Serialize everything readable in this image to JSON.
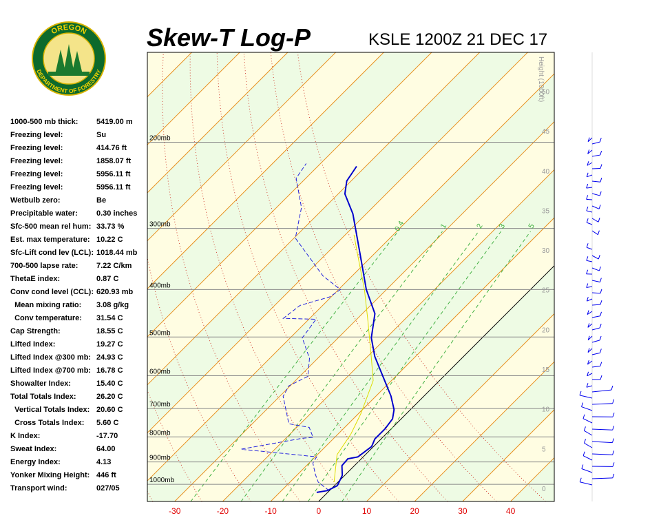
{
  "logo": {
    "top": "OREGON",
    "bottom": "DEPARTMENT OF FORESTRY"
  },
  "stats": [
    [
      "1000-500 mb thick:",
      "5419.00 m"
    ],
    [
      "Freezing level:",
      "Su"
    ],
    [
      "Freezing level:",
      "414.76 ft"
    ],
    [
      "Freezing level:",
      "1858.07 ft"
    ],
    [
      "Freezing level:",
      "5956.11 ft"
    ],
    [
      "Freezing level:",
      "5956.11 ft"
    ],
    [
      "Wetbulb zero:",
      "Be"
    ],
    [
      "Precipitable water:",
      "0.30 inches"
    ],
    [
      "Sfc-500 mean rel hum:",
      "33.73 %"
    ],
    [
      "Est. max temperature:",
      "10.22 C"
    ],
    [
      "Sfc-Lift cond lev (LCL):",
      "1018.44 mb"
    ],
    [
      "700-500 lapse rate:",
      "7.22 C/km"
    ],
    [
      "ThetaE index:",
      "0.87 C"
    ],
    [
      "Conv cond level (CCL):",
      "620.93 mb"
    ],
    [
      "  Mean mixing ratio:",
      "3.08 g/kg"
    ],
    [
      "  Conv temperature:",
      "31.54 C"
    ],
    [
      "Cap Strength:",
      "18.55 C"
    ],
    [
      "Lifted Index:",
      "19.27 C"
    ],
    [
      "Lifted Index @300 mb:",
      "24.93 C"
    ],
    [
      "Lifted Index @700 mb:",
      "16.78 C"
    ],
    [
      "Showalter Index:",
      "15.40 C"
    ],
    [
      "Total Totals Index:",
      "26.20 C"
    ],
    [
      "  Vertical Totals Index:",
      "20.60 C"
    ],
    [
      "  Cross Totals Index:",
      "5.60 C"
    ],
    [
      "K Index:",
      "-17.70"
    ],
    [
      "Sweat Index:",
      "64.00"
    ],
    [
      "Energy Index:",
      "4.13"
    ],
    [
      "Yonker Mixing Height:",
      "446 ft"
    ],
    [
      "Transport wind:",
      "027/05"
    ]
  ],
  "chart_data": {
    "type": "skewt",
    "title": "Skew-T Log-P",
    "subtitle": "KSLE 1200Z 21 DEC 17",
    "xlim": [
      -35.7,
      49.1
    ],
    "xticks": [
      -30,
      -20,
      -10,
      0,
      10,
      20,
      30,
      40
    ],
    "ylim": [
      1084,
      131
    ],
    "log_y": true,
    "yticks": [
      {
        "value": 1000,
        "label": "1000mb"
      },
      {
        "value": 900,
        "label": "900mb"
      },
      {
        "value": 800,
        "label": "800mb"
      },
      {
        "value": 700,
        "label": "700mb"
      },
      {
        "value": 600,
        "label": "600mb"
      },
      {
        "value": 500,
        "label": "500mb"
      },
      {
        "value": 400,
        "label": "400mb"
      },
      {
        "value": 300,
        "label": "300mb"
      },
      {
        "value": 200,
        "label": "200mb"
      }
    ],
    "y2label": "Height (1000ft)",
    "y2lim": [
      -1.65,
      54.9
    ],
    "y2ticks": [
      0,
      5,
      10,
      15,
      20,
      25,
      30,
      35,
      40,
      45,
      50
    ],
    "mixing_ratios": [
      0.4,
      1,
      2,
      3,
      5
    ],
    "series": [
      {
        "color": "#0000cc",
        "style": "solid",
        "width": 2,
        "pressure": [
          1039,
          1030,
          1006,
          959,
          916,
          887,
          879,
          837,
          808,
          770,
          735,
          704,
          660,
          619,
          548,
          502,
          448,
          400,
          341,
          280,
          255,
          240,
          224
        ],
        "temperature": [
          -2.3,
          -0.4,
          0.6,
          -0.5,
          -2.6,
          -2.8,
          -1.1,
          -0.4,
          -1.3,
          -1.3,
          -1.8,
          -3.4,
          -6.9,
          -10.9,
          -18.5,
          -23.1,
          -27.4,
          -34.2,
          -42.5,
          -52.8,
          -58.6,
          -60.9,
          -61.9
        ]
      },
      {
        "color": "#2222dd",
        "style": "dashed",
        "width": 1,
        "pressure": [
          1030,
          990,
          953,
          905,
          879,
          870,
          848,
          805,
          802,
          765,
          752,
          661,
          629,
          602,
          553,
          502,
          460,
          458,
          431,
          414,
          400,
          375,
          314,
          272,
          237,
          221
        ],
        "temperature": [
          -0.1,
          -4.1,
          -6.4,
          -9.2,
          -9.7,
          -14.5,
          -27.1,
          -16.5,
          -14.5,
          -17.4,
          -22.4,
          -29.3,
          -30.3,
          -28.3,
          -31.7,
          -37.5,
          -38.5,
          -45.5,
          -44.7,
          -40.3,
          -39.6,
          -46.1,
          -59.7,
          -64.8,
          -72.0,
          -73.0
        ]
      },
      {
        "color": "#dddd00",
        "style": "solid",
        "width": 1,
        "pressure": [
          990,
          870,
          790,
          717,
          614,
          553,
          463,
          400,
          340,
          309
        ],
        "temperature": [
          -0.8,
          -5.9,
          -7.3,
          -9.5,
          -13.8,
          -18.8,
          -27.4,
          -34.6,
          -43.2,
          -48.2
        ]
      }
    ]
  }
}
